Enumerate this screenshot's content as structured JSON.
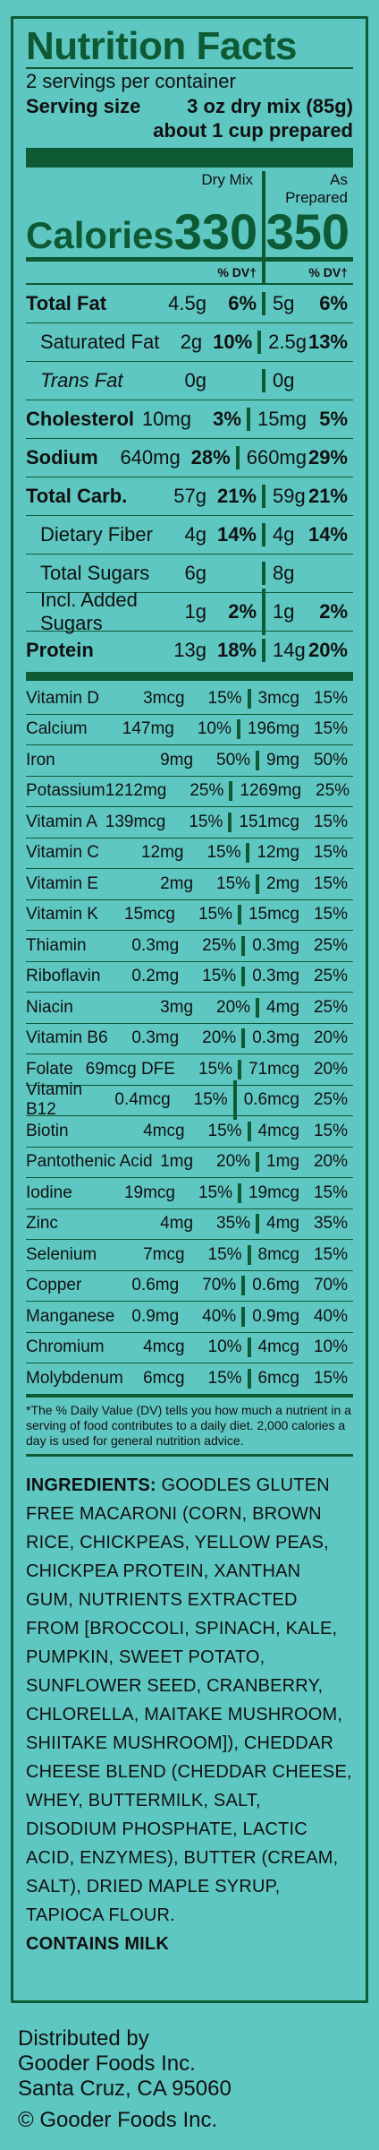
{
  "label": {
    "title": "Nutrition Facts",
    "servings": "2 servings per container",
    "serving_size_label": "Serving size",
    "serving_size_value": "3 oz dry mix (85g)",
    "about": "about 1 cup prepared",
    "col_dry": "Dry Mix",
    "col_prepared": "As Prepared",
    "calories_label": "Calories",
    "calories_dry": "330",
    "calories_prepared": "350",
    "dv_header": "% DV†"
  },
  "macros": [
    {
      "name": "Total Fat",
      "bold": true,
      "indent": false,
      "italic_prefix": "",
      "dry_amt": "4.5g",
      "dry_dv": "6%",
      "prep_amt": "5g",
      "prep_dv": "6%"
    },
    {
      "name": "Saturated Fat",
      "bold": false,
      "indent": true,
      "dry_amt": "2g",
      "dry_dv": "10%",
      "prep_amt": "2.5g",
      "prep_dv": "13%"
    },
    {
      "name": "Trans Fat",
      "bold": false,
      "indent": true,
      "italic": true,
      "dry_amt": "0g",
      "dry_dv": "",
      "prep_amt": "0g",
      "prep_dv": ""
    },
    {
      "name": "Cholesterol",
      "bold": true,
      "indent": false,
      "dry_amt": "10mg",
      "dry_dv": "3%",
      "prep_amt": "15mg",
      "prep_dv": "5%"
    },
    {
      "name": "Sodium",
      "bold": true,
      "indent": false,
      "dry_amt": "640mg",
      "dry_dv": "28%",
      "prep_amt": "660mg",
      "prep_dv": "29%"
    },
    {
      "name": "Total Carb.",
      "bold": true,
      "indent": false,
      "dry_amt": "57g",
      "dry_dv": "21%",
      "prep_amt": "59g",
      "prep_dv": "21%"
    },
    {
      "name": "Dietary Fiber",
      "bold": false,
      "indent": true,
      "dry_amt": "4g",
      "dry_dv": "14%",
      "prep_amt": "4g",
      "prep_dv": "14%"
    },
    {
      "name": "Total Sugars",
      "bold": false,
      "indent": true,
      "dry_amt": "6g",
      "dry_dv": "",
      "prep_amt": "8g",
      "prep_dv": ""
    },
    {
      "name": "Incl. Added Sugars",
      "bold": false,
      "indent": true,
      "dry_amt": "1g",
      "dry_dv": "2%",
      "prep_amt": "1g",
      "prep_dv": "2%"
    },
    {
      "name": "Protein",
      "bold": true,
      "indent": false,
      "dry_amt": "13g",
      "dry_dv": "18%",
      "prep_amt": "14g",
      "prep_dv": "20%"
    }
  ],
  "vitamins": [
    {
      "name": "Vitamin D",
      "dry_amt": "3mcg",
      "dry_dv": "15%",
      "prep_amt": "3mcg",
      "prep_dv": "15%"
    },
    {
      "name": "Calcium",
      "dry_amt": "147mg",
      "dry_dv": "10%",
      "prep_amt": "196mg",
      "prep_dv": "15%"
    },
    {
      "name": "Iron",
      "dry_amt": "9mg",
      "dry_dv": "50%",
      "prep_amt": "9mg",
      "prep_dv": "50%"
    },
    {
      "name": "Potassium",
      "dry_amt": "1212mg",
      "dry_dv": "25%",
      "prep_amt": "1269mg",
      "prep_dv": "25%"
    },
    {
      "name": "Vitamin A",
      "dry_amt": "139mcg",
      "dry_dv": "15%",
      "prep_amt": "151mcg",
      "prep_dv": "15%"
    },
    {
      "name": "Vitamin C",
      "dry_amt": "12mg",
      "dry_dv": "15%",
      "prep_amt": "12mg",
      "prep_dv": "15%"
    },
    {
      "name": "Vitamin E",
      "dry_amt": "2mg",
      "dry_dv": "15%",
      "prep_amt": "2mg",
      "prep_dv": "15%"
    },
    {
      "name": "Vitamin K",
      "dry_amt": "15mcg",
      "dry_dv": "15%",
      "prep_amt": "15mcg",
      "prep_dv": "15%"
    },
    {
      "name": "Thiamin",
      "dry_amt": "0.3mg",
      "dry_dv": "25%",
      "prep_amt": "0.3mg",
      "prep_dv": "25%"
    },
    {
      "name": "Riboflavin",
      "dry_amt": "0.2mg",
      "dry_dv": "15%",
      "prep_amt": "0.3mg",
      "prep_dv": "25%"
    },
    {
      "name": "Niacin",
      "dry_amt": "3mg",
      "dry_dv": "20%",
      "prep_amt": "4mg",
      "prep_dv": "25%"
    },
    {
      "name": "Vitamin B6",
      "dry_amt": "0.3mg",
      "dry_dv": "20%",
      "prep_amt": "0.3mg",
      "prep_dv": "20%"
    },
    {
      "name": "Folate",
      "dry_amt": "69mcg DFE",
      "dry_dv": "15%",
      "prep_amt": "71mcg",
      "prep_dv": "20%"
    },
    {
      "name": "Vitamin B12",
      "dry_amt": "0.4mcg",
      "dry_dv": "15%",
      "prep_amt": "0.6mcg",
      "prep_dv": "25%"
    },
    {
      "name": "Biotin",
      "dry_amt": "4mcg",
      "dry_dv": "15%",
      "prep_amt": "4mcg",
      "prep_dv": "15%"
    },
    {
      "name": "Pantothenic Acid",
      "dry_amt": "1mg",
      "dry_dv": "20%",
      "prep_amt": "1mg",
      "prep_dv": "20%"
    },
    {
      "name": "Iodine",
      "dry_amt": "19mcg",
      "dry_dv": "15%",
      "prep_amt": "19mcg",
      "prep_dv": "15%"
    },
    {
      "name": "Zinc",
      "dry_amt": "4mg",
      "dry_dv": "35%",
      "prep_amt": "4mg",
      "prep_dv": "35%"
    },
    {
      "name": "Selenium",
      "dry_amt": "7mcg",
      "dry_dv": "15%",
      "prep_amt": "8mcg",
      "prep_dv": "15%"
    },
    {
      "name": "Copper",
      "dry_amt": "0.6mg",
      "dry_dv": "70%",
      "prep_amt": "0.6mg",
      "prep_dv": "70%"
    },
    {
      "name": "Manganese",
      "dry_amt": "0.9mg",
      "dry_dv": "40%",
      "prep_amt": "0.9mg",
      "prep_dv": "40%"
    },
    {
      "name": "Chromium",
      "dry_amt": "4mcg",
      "dry_dv": "10%",
      "prep_amt": "4mcg",
      "prep_dv": "10%"
    },
    {
      "name": "Molybdenum",
      "dry_amt": "6mcg",
      "dry_dv": "15%",
      "prep_amt": "6mcg",
      "prep_dv": "15%"
    }
  ],
  "footnote": "*The % Daily Value (DV) tells you how much a nutrient in a serving of food contributes to a daily diet. 2,000 calories a day is used for general nutrition advice.",
  "ingredients_label": "INGREDIENTS:",
  "ingredients_text": "GOODLES GLUTEN FREE MACARONI (CORN, BROWN RICE, CHICKPEAS, YELLOW PEAS, CHICKPEA PROTEIN, XANTHAN GUM, NUTRIENTS EXTRACTED FROM [BROCCOLI, SPINACH, KALE, PUMPKIN, SWEET POTATO, SUNFLOWER SEED, CRANBERRY, CHLORELLA, MAITAKE MUSHROOM, SHIITAKE MUSHROOM]), CHEDDAR CHEESE BLEND (CHEDDAR CHEESE, WHEY, BUTTERMILK, SALT, DISODIUM PHOSPHATE, LACTIC ACID, ENZYMES), BUTTER (CREAM, SALT), DRIED MAPLE SYRUP, TAPIOCA FLOUR.",
  "contains": "CONTAINS MILK",
  "distributor": {
    "line1": "Distributed by",
    "line2": "Gooder Foods Inc.",
    "line3": "Santa Cruz, CA 95060"
  },
  "copyright": "© Gooder Foods Inc.",
  "colors": {
    "background": "#5fc7c2",
    "accent": "#0d5a35"
  }
}
